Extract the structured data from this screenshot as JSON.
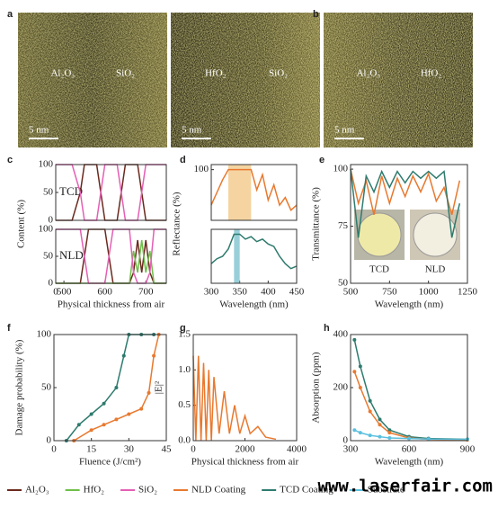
{
  "images": [
    {
      "label": "a",
      "texts": [
        "Al₂O₃",
        "SiO₂"
      ],
      "scale": "5 nm"
    },
    {
      "texts": [
        "HfO₂",
        "SiO₂"
      ],
      "scale": "5 nm"
    },
    {
      "label": "b",
      "texts": [
        "Al₂O₃",
        "HfO₂"
      ],
      "scale": "5 nm"
    }
  ],
  "chart_data": [
    {
      "type": "line",
      "label": "c",
      "ylabel": "Content (%)",
      "xlabel": "Physical thickness from air",
      "xlim": [
        480,
        750
      ],
      "xticks": [
        {
          "value": 480,
          "label": "0"
        },
        500,
        600,
        700
      ],
      "subplots": [
        {
          "text": "TCD",
          "ylim": [
            0,
            100
          ],
          "yticks": [
            0,
            50,
            100
          ],
          "series": [
            {
              "name": "Al₂O₃",
              "color": "#6b2a1e",
              "x": [
                480,
                520,
                540,
                550,
                580,
                590,
                600,
                630,
                640,
                650,
                680,
                690,
                700,
                740,
                750
              ],
              "values": [
                0,
                0,
                50,
                100,
                100,
                50,
                0,
                0,
                50,
                100,
                100,
                50,
                0,
                0,
                0
              ]
            },
            {
              "name": "SiO₂",
              "color": "#e55fb5",
              "x": [
                480,
                520,
                540,
                550,
                580,
                590,
                600,
                630,
                640,
                650,
                680,
                690,
                700,
                740,
                750
              ],
              "values": [
                100,
                100,
                50,
                0,
                0,
                50,
                100,
                100,
                50,
                0,
                0,
                50,
                100,
                100,
                100
              ]
            }
          ]
        },
        {
          "text": "NLD",
          "ylim": [
            0,
            100
          ],
          "yticks": [
            0,
            50,
            100
          ],
          "series": [
            {
              "name": "Al₂O₃",
              "color": "#6b2a1e",
              "x": [
                480,
                540,
                550,
                560,
                600,
                610,
                620,
                660,
                670,
                680,
                690,
                700,
                710,
                720,
                750
              ],
              "values": [
                0,
                0,
                50,
                100,
                100,
                50,
                0,
                0,
                20,
                80,
                20,
                80,
                20,
                0,
                0
              ]
            },
            {
              "name": "HfO₂",
              "color": "#6fbf4a",
              "x": [
                480,
                540,
                550,
                560,
                600,
                610,
                620,
                660,
                670,
                680,
                690,
                700,
                710,
                720,
                750
              ],
              "values": [
                0,
                0,
                0,
                0,
                0,
                0,
                0,
                0,
                60,
                20,
                80,
                20,
                60,
                0,
                0
              ]
            },
            {
              "name": "SiO₂",
              "color": "#e55fb5",
              "x": [
                480,
                540,
                550,
                560,
                600,
                610,
                620,
                660,
                670,
                680,
                690,
                700,
                710,
                720,
                750
              ],
              "values": [
                100,
                100,
                50,
                0,
                0,
                50,
                100,
                100,
                20,
                0,
                0,
                0,
                20,
                100,
                100
              ]
            }
          ]
        }
      ]
    },
    {
      "type": "line",
      "label": "d",
      "ylabel": "Reflectance (%)",
      "xlabel": "Wavelength (nm)",
      "xlim": [
        300,
        450
      ],
      "xticks": [
        300,
        350,
        400,
        450
      ],
      "subplots": [
        {
          "ylim": [
            0,
            110
          ],
          "yticks": [
            100
          ],
          "highlight": [
            330,
            370
          ],
          "highlight_color": "#f3c98a",
          "series": [
            {
              "name": "NLD Coating",
              "color": "#e8792f",
              "x": [
                300,
                310,
                320,
                330,
                340,
                350,
                360,
                370,
                380,
                390,
                400,
                410,
                420,
                430,
                440,
                450
              ],
              "values": [
                30,
                55,
                80,
                100,
                100,
                100,
                100,
                100,
                60,
                90,
                40,
                70,
                30,
                45,
                20,
                30
              ]
            }
          ]
        },
        {
          "ylim": [
            0,
            110
          ],
          "yticks": [],
          "highlight": [
            340,
            350
          ],
          "highlight_color": "#7fc3cf",
          "series": [
            {
              "name": "TCD Coating",
              "color": "#2e7b6e",
              "x": [
                300,
                310,
                320,
                330,
                340,
                350,
                360,
                370,
                380,
                390,
                400,
                410,
                420,
                430,
                440,
                450
              ],
              "values": [
                40,
                50,
                55,
                70,
                100,
                100,
                90,
                95,
                85,
                90,
                80,
                75,
                55,
                40,
                30,
                35
              ]
            }
          ]
        }
      ]
    },
    {
      "type": "line",
      "label": "e",
      "ylabel": "Transmittance (%)",
      "xlabel": "Wavelength (nm)",
      "xlim": [
        500,
        1250
      ],
      "xticks": [
        500,
        750,
        1000,
        1250
      ],
      "subplots": [
        {
          "ylim": [
            50,
            102
          ],
          "yticks": [
            50,
            75,
            100
          ],
          "photo_texts": [
            "TCD",
            "NLD"
          ],
          "series": [
            {
              "name": "NLD Coating",
              "color": "#e8792f",
              "x": [
                500,
                550,
                600,
                650,
                700,
                750,
                800,
                850,
                900,
                950,
                1000,
                1050,
                1100,
                1150,
                1200
              ],
              "values": [
                100,
                85,
                95,
                80,
                97,
                85,
                96,
                88,
                97,
                90,
                98,
                86,
                92,
                80,
                95
              ]
            },
            {
              "name": "TCD Coating",
              "color": "#2e7b6e",
              "x": [
                500,
                550,
                600,
                650,
                700,
                750,
                800,
                850,
                900,
                950,
                1000,
                1050,
                1100,
                1150,
                1200
              ],
              "values": [
                100,
                70,
                97,
                90,
                99,
                92,
                99,
                94,
                99,
                96,
                99,
                96,
                99,
                70,
                85
              ]
            }
          ]
        }
      ]
    },
    {
      "type": "line",
      "label": "f",
      "ylabel": "Damage probability (%)",
      "xlabel": "Fluence (J/cm²)",
      "xlim": [
        0,
        45
      ],
      "xticks": [
        0,
        15,
        30,
        45
      ],
      "markers": true,
      "subplots": [
        {
          "ylim": [
            0,
            100
          ],
          "yticks": [
            0,
            50,
            100
          ],
          "series": [
            {
              "name": "TCD Coating",
              "color": "#2e7b6e",
              "x": [
                5,
                10,
                15,
                20,
                25,
                28,
                30,
                35,
                40
              ],
              "values": [
                0,
                15,
                25,
                35,
                50,
                80,
                100,
                100,
                100
              ]
            },
            {
              "name": "NLD Coating",
              "color": "#e8792f",
              "x": [
                8,
                15,
                20,
                25,
                30,
                35,
                38,
                40,
                42
              ],
              "values": [
                0,
                10,
                15,
                20,
                25,
                30,
                45,
                80,
                100
              ]
            }
          ]
        }
      ]
    },
    {
      "type": "line",
      "label": "g",
      "ylabel": "|E|²",
      "xlabel": "Physical thickness from air",
      "xlim": [
        0,
        4000
      ],
      "xticks": [
        0,
        2000,
        4000
      ],
      "subplots": [
        {
          "ylim": [
            0,
            1.5
          ],
          "yticks": [
            {
              "value": 0,
              "label": "0.0"
            },
            0.5,
            {
              "value": 1,
              "label": "1.0"
            },
            1.5
          ],
          "series": [
            {
              "name": "NLD Coating",
              "color": "#e8792f",
              "x": [
                0,
                100,
                200,
                300,
                400,
                500,
                600,
                700,
                800,
                1000,
                1200,
                1400,
                1600,
                1800,
                2000,
                2200,
                2500,
                2800,
                3200
              ],
              "values": [
                1.2,
                0,
                1.2,
                0,
                1.1,
                0,
                1.0,
                0,
                0.9,
                0.1,
                0.7,
                0.1,
                0.5,
                0.1,
                0.35,
                0.1,
                0.2,
                0.05,
                0.02
              ]
            }
          ]
        }
      ]
    },
    {
      "type": "line",
      "label": "h",
      "ylabel": "Absorption (ppm)",
      "xlabel": "Wavelength (nm)",
      "xlim": [
        300,
        900
      ],
      "xticks": [
        300,
        600,
        900
      ],
      "markers": true,
      "subplots": [
        {
          "ylim": [
            0,
            400
          ],
          "yticks": [
            0,
            200,
            400
          ],
          "series": [
            {
              "name": "TCD Coating",
              "color": "#2e7b6e",
              "x": [
                320,
                350,
                400,
                450,
                500,
                600,
                700,
                900
              ],
              "values": [
                380,
                280,
                150,
                80,
                40,
                15,
                8,
                5
              ]
            },
            {
              "name": "NLD Coating",
              "color": "#e8792f",
              "x": [
                320,
                350,
                400,
                450,
                500,
                600,
                700,
                900
              ],
              "values": [
                260,
                200,
                110,
                60,
                30,
                10,
                5,
                3
              ]
            },
            {
              "name": "Substrate",
              "color": "#5bc0de",
              "x": [
                320,
                350,
                400,
                450,
                500,
                600,
                700,
                900
              ],
              "values": [
                40,
                30,
                20,
                15,
                10,
                8,
                6,
                5
              ]
            }
          ]
        }
      ]
    }
  ],
  "legend": [
    {
      "name": "Al₂O₃",
      "color": "#6b2a1e"
    },
    {
      "name": "HfO₂",
      "color": "#6fbf4a"
    },
    {
      "name": "SiO₂",
      "color": "#e55fb5"
    },
    {
      "name": "NLD Coating",
      "color": "#e8792f"
    },
    {
      "name": "TCD Coating",
      "color": "#2e7b6e"
    },
    {
      "name": "Substrate",
      "color": "#5bc0de"
    }
  ],
  "watermark": "www.laserfair.com"
}
